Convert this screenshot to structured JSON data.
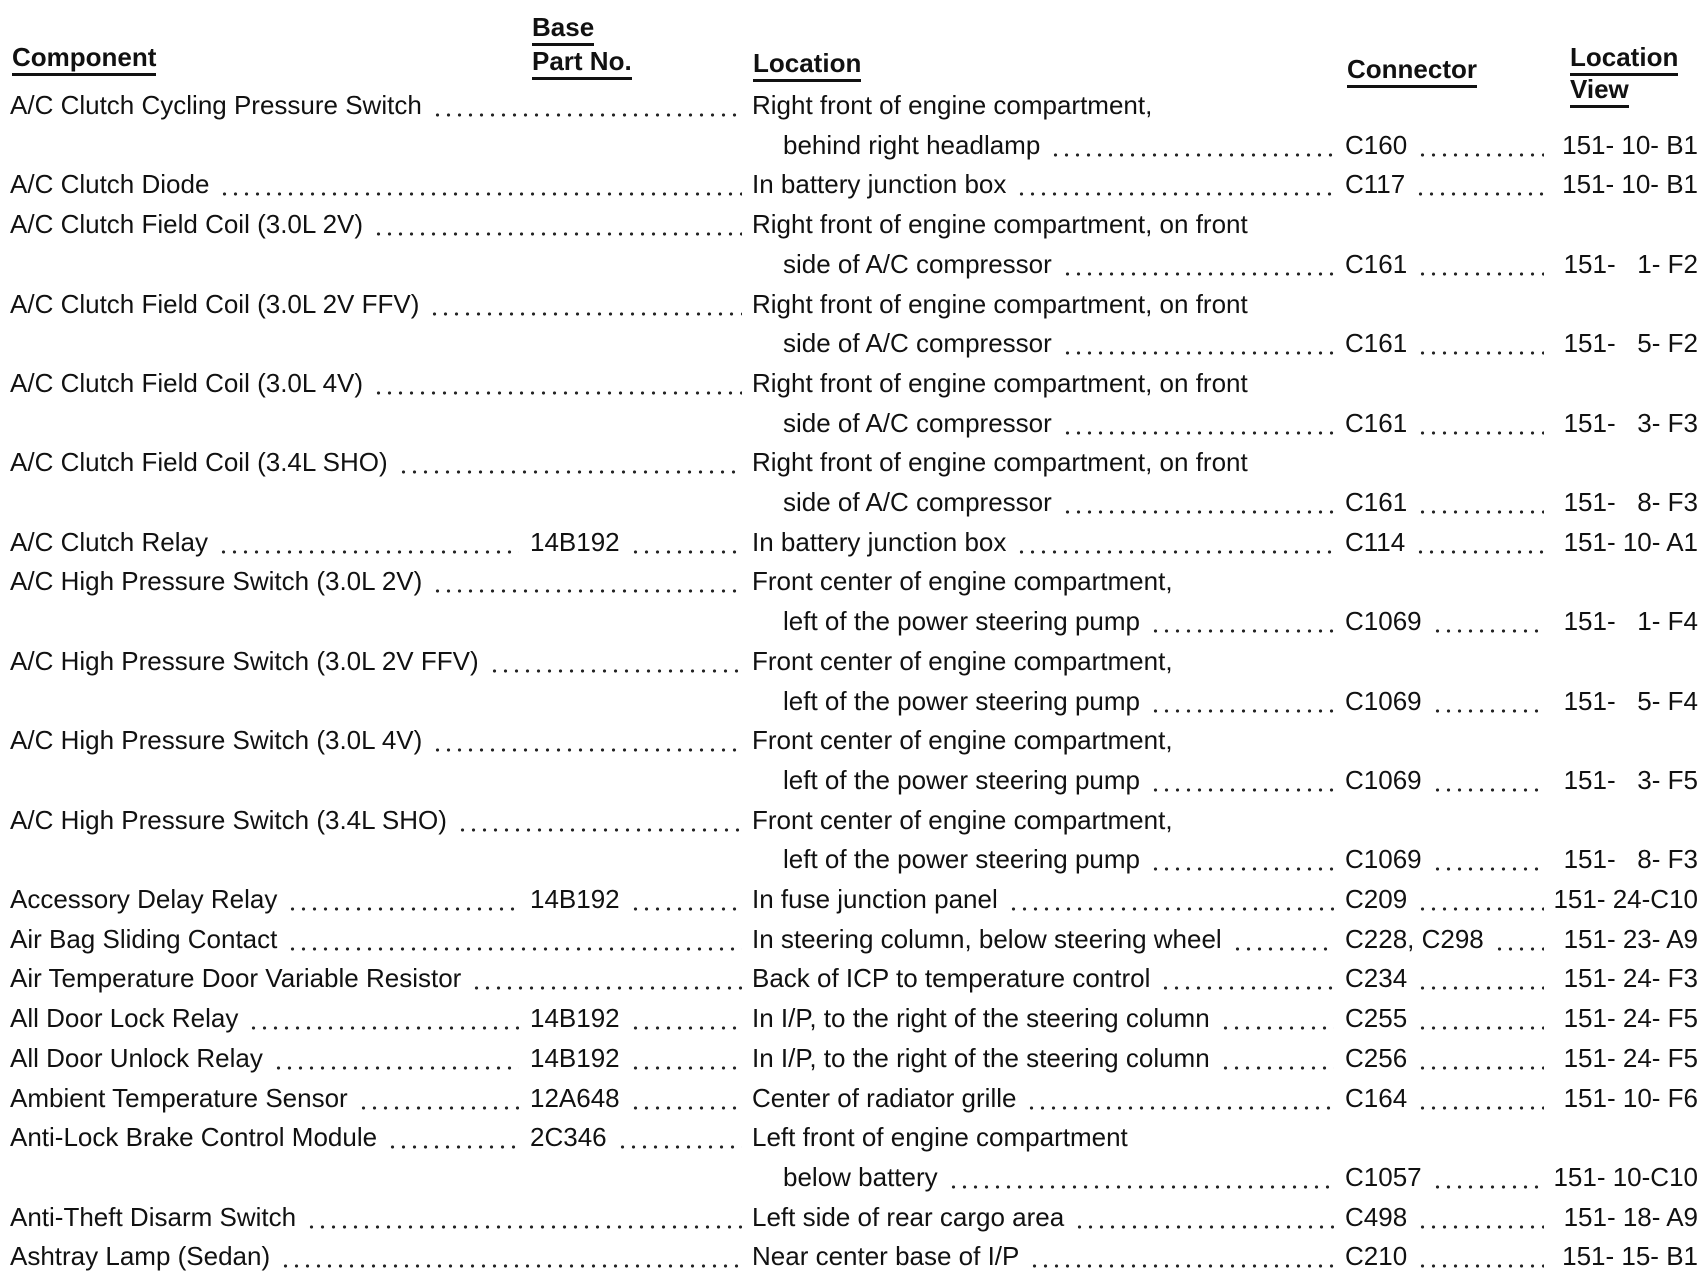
{
  "headers": {
    "component": "Component",
    "base": "Base",
    "part_no": "Part No.",
    "location": "Location",
    "connector": "Connector",
    "location_view_1": "Location",
    "location_view_2": "View"
  },
  "entries": [
    {
      "component": "A/C Clutch Cycling Pressure Switch",
      "part": "",
      "location": [
        "Right front of engine compartment,",
        "behind right headlamp"
      ],
      "connector": "C160",
      "view": "151- 10- B1"
    },
    {
      "component": "A/C Clutch Diode",
      "part": "",
      "location": [
        "In battery junction box"
      ],
      "connector": "C117",
      "view": "151- 10- B1"
    },
    {
      "component": "A/C Clutch Field Coil (3.0L 2V)",
      "part": "",
      "location": [
        "Right front of engine compartment, on front",
        "side of A/C compressor"
      ],
      "connector": "C161",
      "view": "151-   1- F2"
    },
    {
      "component": "A/C Clutch Field Coil (3.0L 2V FFV)",
      "part": "",
      "location": [
        "Right front of engine compartment, on front",
        "side of A/C compressor"
      ],
      "connector": "C161",
      "view": "151-   5- F2"
    },
    {
      "component": "A/C Clutch Field Coil (3.0L 4V)",
      "part": "",
      "location": [
        "Right front of engine compartment, on front",
        "side of A/C compressor"
      ],
      "connector": "C161",
      "view": "151-   3- F3"
    },
    {
      "component": "A/C Clutch Field Coil (3.4L SHO)",
      "part": "",
      "location": [
        "Right front of engine compartment, on front",
        "side of A/C compressor"
      ],
      "connector": "C161",
      "view": "151-   8- F3"
    },
    {
      "component": "A/C Clutch Relay",
      "part": "14B192",
      "location": [
        "In battery junction box"
      ],
      "connector": "C114",
      "view": "151- 10- A1"
    },
    {
      "component": "A/C High Pressure Switch (3.0L 2V)",
      "part": "",
      "location": [
        "Front center of engine compartment,",
        "left of the power steering pump"
      ],
      "connector": "C1069",
      "view": "151-   1- F4"
    },
    {
      "component": "A/C High Pressure Switch (3.0L 2V FFV)",
      "part": "",
      "location": [
        "Front center of engine compartment,",
        "left of the power steering pump"
      ],
      "connector": "C1069",
      "view": "151-   5- F4"
    },
    {
      "component": "A/C High Pressure Switch (3.0L 4V)",
      "part": "",
      "location": [
        "Front center of engine compartment,",
        "left of the power steering pump"
      ],
      "connector": "C1069",
      "view": "151-   3- F5"
    },
    {
      "component": "A/C High Pressure Switch (3.4L SHO)",
      "part": "",
      "location": [
        "Front center of engine compartment,",
        "left of the power steering pump"
      ],
      "connector": "C1069",
      "view": "151-   8- F3"
    },
    {
      "component": "Accessory Delay Relay",
      "part": "14B192",
      "location": [
        "In fuse junction panel"
      ],
      "connector": "C209",
      "view": "151- 24-C10"
    },
    {
      "component": "Air Bag Sliding Contact",
      "part": "",
      "location": [
        "In steering column, below steering wheel"
      ],
      "connector": "C228, C298",
      "view": "151- 23- A9"
    },
    {
      "component": "Air Temperature Door Variable Resistor",
      "part": "",
      "location": [
        "Back of ICP to temperature control"
      ],
      "connector": "C234",
      "view": "151- 24- F3"
    },
    {
      "component": "All Door Lock Relay",
      "part": "14B192",
      "location": [
        "In I/P, to the right of the steering column"
      ],
      "connector": "C255",
      "view": "151- 24- F5"
    },
    {
      "component": "All Door Unlock Relay",
      "part": "14B192",
      "location": [
        "In I/P, to the right of the steering column"
      ],
      "connector": "C256",
      "view": "151- 24- F5"
    },
    {
      "component": "Ambient Temperature Sensor",
      "part": "12A648",
      "location": [
        "Center of radiator grille"
      ],
      "connector": "C164",
      "view": "151- 10- F6"
    },
    {
      "component": "Anti-Lock Brake Control Module",
      "part": "2C346",
      "location": [
        "Left front of engine compartment",
        "below battery"
      ],
      "connector": "C1057",
      "view": "151- 10-C10"
    },
    {
      "component": "Anti-Theft Disarm Switch",
      "part": "",
      "location": [
        "Left side of rear cargo area"
      ],
      "connector": "C498",
      "view": "151- 18- A9"
    },
    {
      "component": "Ashtray Lamp (Sedan)",
      "part": "",
      "location": [
        "Near center base of I/P"
      ],
      "connector": "C210",
      "view": "151- 15- B1"
    }
  ]
}
